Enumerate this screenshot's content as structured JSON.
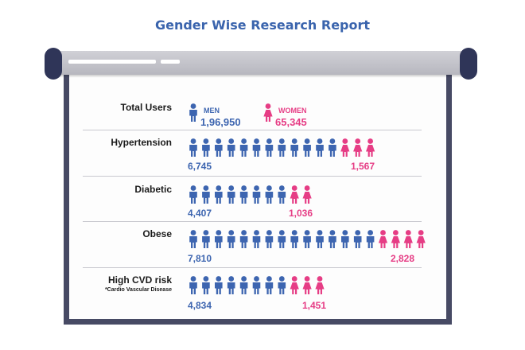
{
  "title": "Gender Wise Research Report",
  "colors": {
    "men": "#3d65b0",
    "women": "#e63d85",
    "board_frame": "#474a64"
  },
  "icons": {
    "men": "person-male-icon",
    "women": "person-female-icon"
  },
  "summary": {
    "label": "Total Users",
    "men": {
      "label": "MEN",
      "value": "1,96,950"
    },
    "women": {
      "label": "WOMEN",
      "value": "65,345"
    }
  },
  "chart_data": {
    "type": "bar",
    "title": "Gender Wise Research Report",
    "categories": [
      "Hypertension",
      "Diabetic",
      "Obese",
      "High CVD risk"
    ],
    "series": [
      {
        "name": "MEN",
        "values": [
          6745,
          4407,
          7810,
          4834
        ],
        "labels": [
          "6,745",
          "4,407",
          "7,810",
          "4,834"
        ],
        "icon_counts": [
          12,
          8,
          15,
          8
        ]
      },
      {
        "name": "WOMEN",
        "values": [
          1567,
          1036,
          2828,
          1451
        ],
        "labels": [
          "1,567",
          "1,036",
          "2,828",
          "1,451"
        ],
        "icon_counts": [
          3,
          2,
          4,
          3
        ]
      }
    ],
    "note": "*Cardio Vascular Disease",
    "grid": false,
    "legend": "top"
  }
}
